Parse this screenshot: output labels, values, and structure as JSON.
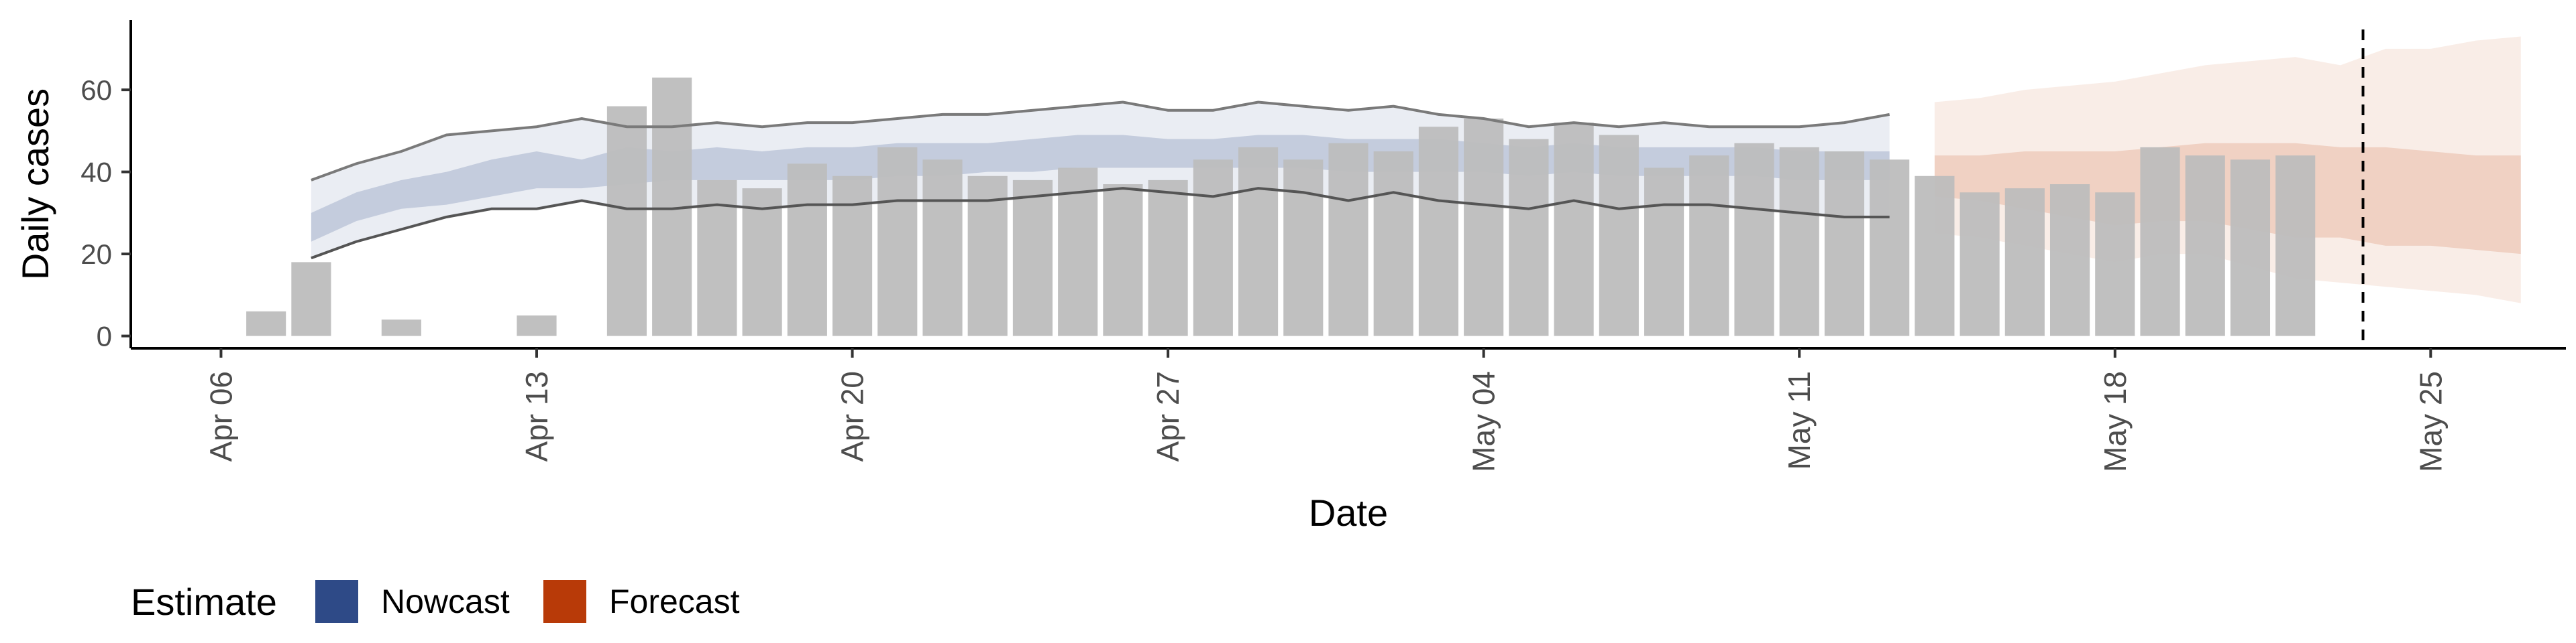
{
  "chart_data": {
    "type": "bar",
    "xlabel": "Date",
    "ylabel": "Daily cases",
    "y_ticks": [
      "0",
      "20",
      "40",
      "60"
    ],
    "y_tick_values": [
      0,
      20,
      40,
      60
    ],
    "ylim": [
      -3,
      77
    ],
    "x_ticks": [
      "Apr 06",
      "Apr 13",
      "Apr 20",
      "Apr 27",
      "May 04",
      "May 11",
      "May 18",
      "May 25"
    ],
    "x_tick_values": [
      "2020-04-06",
      "2020-04-13",
      "2020-04-20",
      "2020-04-27",
      "2020-05-04",
      "2020-05-11",
      "2020-05-18",
      "2020-05-25"
    ],
    "xlim": [
      "2020-04-04",
      "2020-05-28"
    ],
    "reported_cases": {
      "color": "#bdbdbd",
      "dates": [
        "2020-04-07",
        "2020-04-08",
        "2020-04-10",
        "2020-04-13",
        "2020-04-15",
        "2020-04-16",
        "2020-04-17",
        "2020-04-18",
        "2020-04-19",
        "2020-04-20",
        "2020-04-21",
        "2020-04-22",
        "2020-04-23",
        "2020-04-24",
        "2020-04-25",
        "2020-04-26",
        "2020-04-27",
        "2020-04-28",
        "2020-04-29",
        "2020-04-30",
        "2020-05-01",
        "2020-05-02",
        "2020-05-03",
        "2020-05-04",
        "2020-05-05",
        "2020-05-06",
        "2020-05-07",
        "2020-05-08",
        "2020-05-09",
        "2020-05-10",
        "2020-05-11",
        "2020-05-12",
        "2020-05-13",
        "2020-05-14",
        "2020-05-15",
        "2020-05-16",
        "2020-05-17",
        "2020-05-18",
        "2020-05-19",
        "2020-05-20",
        "2020-05-21",
        "2020-05-22",
        "2020-05-23"
      ],
      "values": [
        6,
        18,
        4,
        5,
        56,
        63,
        38,
        36,
        42,
        39,
        46,
        43,
        39,
        38,
        41,
        37,
        38,
        43,
        46,
        43,
        47,
        45,
        51,
        53,
        48,
        52,
        49,
        41,
        44,
        47,
        46,
        45,
        43,
        39,
        35,
        36,
        37,
        35,
        46,
        44,
        43,
        44,
        0
      ]
    },
    "nowcast": {
      "color": "#2e4a87",
      "dates": [
        "2020-04-08",
        "2020-04-09",
        "2020-04-10",
        "2020-04-11",
        "2020-04-12",
        "2020-04-13",
        "2020-04-14",
        "2020-04-15",
        "2020-04-16",
        "2020-04-17",
        "2020-04-18",
        "2020-04-19",
        "2020-04-20",
        "2020-04-21",
        "2020-04-22",
        "2020-04-23",
        "2020-04-24",
        "2020-04-25",
        "2020-04-26",
        "2020-04-27",
        "2020-04-28",
        "2020-04-29",
        "2020-04-30",
        "2020-05-01",
        "2020-05-02",
        "2020-05-03",
        "2020-05-04",
        "2020-05-05",
        "2020-05-06",
        "2020-05-07",
        "2020-05-08",
        "2020-05-09",
        "2020-05-10",
        "2020-05-11",
        "2020-05-12",
        "2020-05-13"
      ],
      "lower_90": [
        19,
        23,
        26,
        29,
        31,
        31,
        33,
        31,
        31,
        32,
        31,
        32,
        32,
        33,
        33,
        33,
        34,
        35,
        36,
        35,
        34,
        36,
        35,
        33,
        35,
        33,
        32,
        31,
        33,
        31,
        32,
        32,
        31,
        30,
        29,
        29
      ],
      "upper_90": [
        38,
        42,
        45,
        49,
        50,
        51,
        53,
        51,
        51,
        52,
        51,
        52,
        52,
        53,
        54,
        54,
        55,
        56,
        57,
        55,
        55,
        57,
        56,
        55,
        56,
        54,
        53,
        51,
        52,
        51,
        52,
        51,
        51,
        51,
        52,
        54
      ],
      "lower_50": [
        23,
        28,
        31,
        32,
        34,
        36,
        36,
        37,
        38,
        38,
        38,
        38,
        38,
        39,
        39,
        40,
        40,
        41,
        41,
        41,
        41,
        41,
        41,
        40,
        40,
        40,
        40,
        39,
        40,
        39,
        39,
        39,
        39,
        38,
        38,
        38
      ],
      "upper_50": [
        30,
        35,
        38,
        40,
        43,
        45,
        43,
        46,
        45,
        46,
        45,
        46,
        46,
        47,
        47,
        47,
        48,
        49,
        49,
        48,
        48,
        49,
        49,
        48,
        48,
        48,
        47,
        46,
        47,
        46,
        46,
        46,
        46,
        45,
        45,
        45
      ]
    },
    "forecast": {
      "color": "#c14a12",
      "dates": [
        "2020-05-14",
        "2020-05-15",
        "2020-05-16",
        "2020-05-17",
        "2020-05-18",
        "2020-05-19",
        "2020-05-20",
        "2020-05-21",
        "2020-05-22",
        "2020-05-23",
        "2020-05-24",
        "2020-05-25",
        "2020-05-26",
        "2020-05-27"
      ],
      "lower_90": [
        25,
        24,
        22,
        20,
        18,
        20,
        20,
        17,
        14,
        13,
        12,
        11,
        10,
        8
      ],
      "upper_90": [
        57,
        58,
        60,
        61,
        62,
        64,
        66,
        67,
        68,
        66,
        70,
        70,
        72,
        73
      ],
      "lower_50": [
        34,
        33,
        31,
        29,
        27,
        28,
        28,
        26,
        24,
        24,
        22,
        22,
        21,
        20
      ],
      "upper_50": [
        44,
        44,
        45,
        45,
        45,
        46,
        47,
        47,
        47,
        46,
        46,
        45,
        44,
        44
      ]
    },
    "vline_date": "2020-05-23",
    "grid": false,
    "legend": {
      "position": "bottom-left",
      "title": "Estimate",
      "items": [
        {
          "label": "Nowcast",
          "color": "#2e4a87"
        },
        {
          "label": "Forecast",
          "color": "#b83a08"
        }
      ]
    }
  }
}
